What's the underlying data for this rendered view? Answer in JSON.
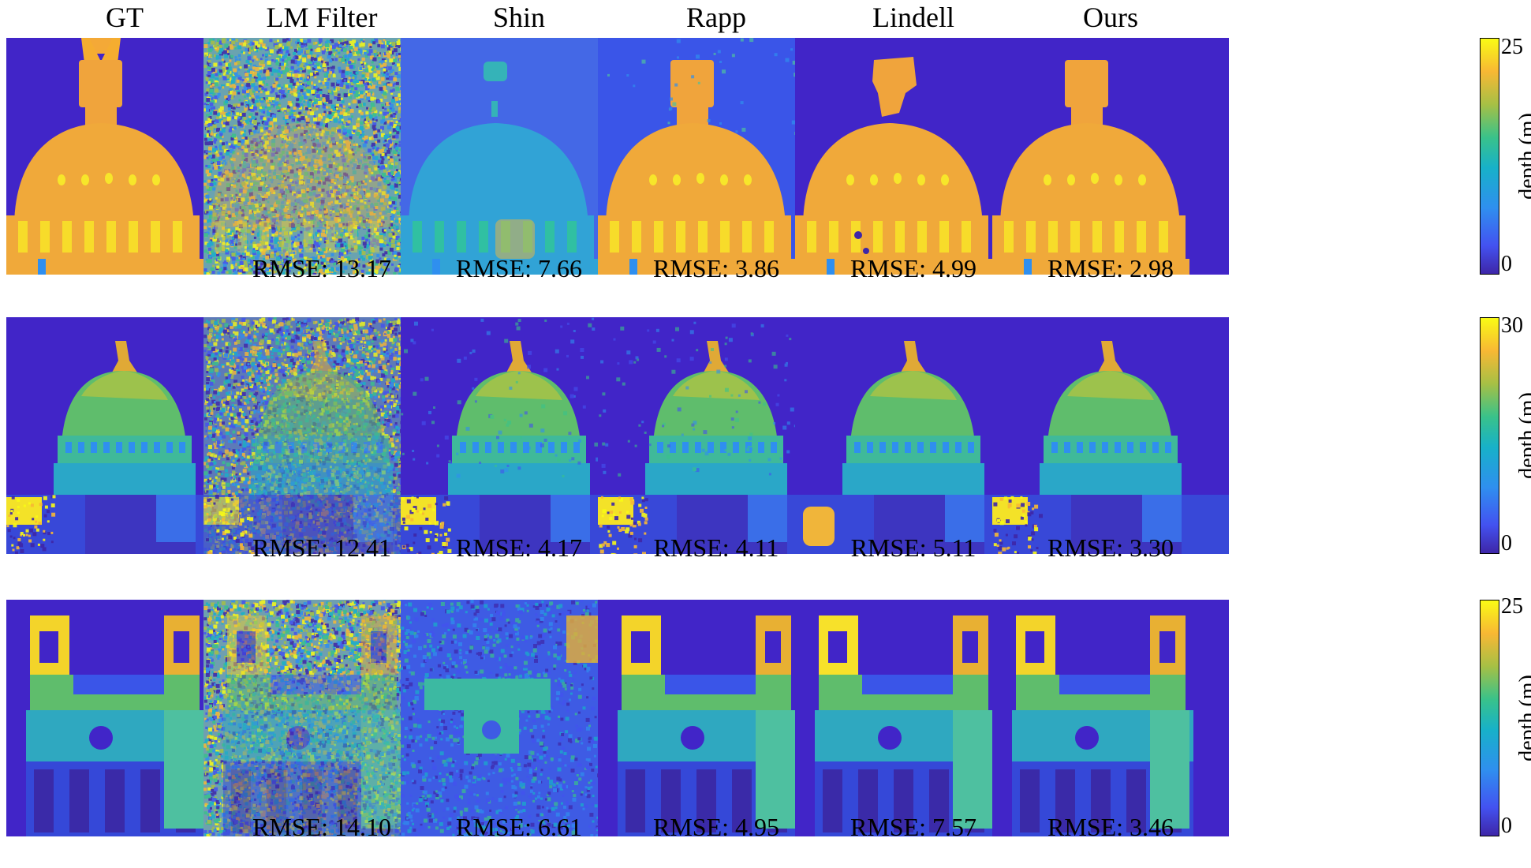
{
  "columns": [
    "GT",
    "LM Filter",
    "Shin",
    "Rapp",
    "Lindell",
    "Ours"
  ],
  "rows": [
    {
      "rmse": [
        "",
        "RMSE: 13.17",
        "RMSE: 7.66",
        "RMSE: 3.86",
        "RMSE: 4.99",
        "RMSE: 2.98"
      ],
      "colorbar": {
        "max_label": "25",
        "min_label": "0",
        "label": "depth (m)"
      }
    },
    {
      "rmse": [
        "",
        "RMSE: 12.41",
        "RMSE: 4.17",
        "RMSE: 4.11",
        "RMSE: 5.11",
        "RMSE: 3.30"
      ],
      "colorbar": {
        "max_label": "30",
        "min_label": "0",
        "label": "depth (m)"
      }
    },
    {
      "rmse": [
        "",
        "RMSE: 14.10",
        "RMSE: 6.61",
        "RMSE: 4.95",
        "RMSE: 7.57",
        "RMSE: 3.46"
      ],
      "colorbar": {
        "max_label": "25",
        "min_label": "0",
        "label": "depth (m)"
      }
    }
  ],
  "colors": {
    "background": "#4125c8",
    "low": "#3e26a8",
    "mid": "#2cb3b5",
    "high": "#f9fb15",
    "dome": "#f0a93a",
    "dome_green": "#7fc05a"
  }
}
